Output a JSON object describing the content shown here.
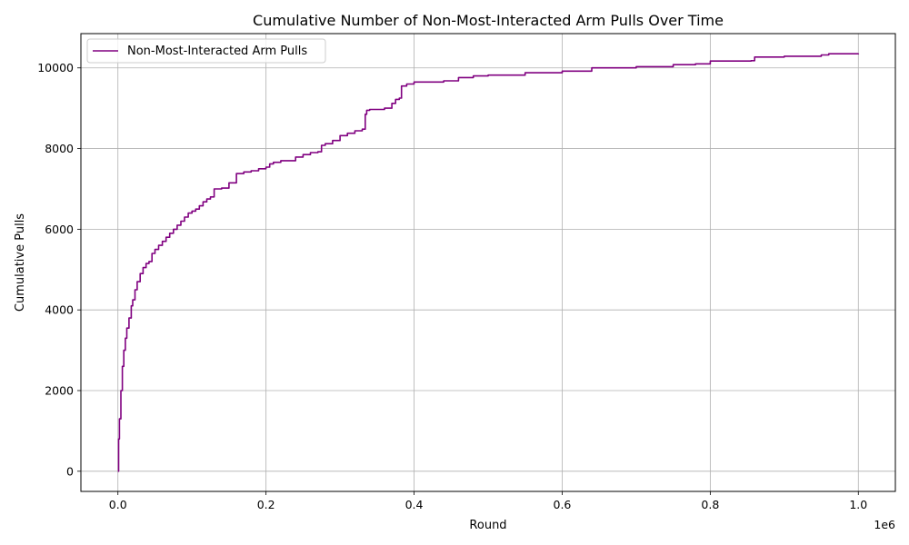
{
  "chart_data": {
    "type": "line",
    "title": "Cumulative Number of Non-Most-Interacted Arm Pulls Over Time",
    "xlabel": "Round",
    "ylabel": "Cumulative Pulls",
    "x_offset_label": "1e6",
    "xlim": [
      -0.05,
      1.05
    ],
    "ylim": [
      -500,
      10850
    ],
    "x_ticks": [
      0.0,
      0.2,
      0.4,
      0.6,
      0.8,
      1.0
    ],
    "x_tick_labels": [
      "0.0",
      "0.2",
      "0.4",
      "0.6",
      "0.8",
      "1.0"
    ],
    "y_ticks": [
      0,
      2000,
      4000,
      6000,
      8000,
      10000
    ],
    "y_tick_labels": [
      "0",
      "2000",
      "4000",
      "6000",
      "8000",
      "10000"
    ],
    "grid": true,
    "legend_position": "top-left",
    "series": [
      {
        "name": "Non-Most-Interacted Arm Pulls",
        "color": "#800080",
        "x": [
          0.0,
          0.001,
          0.002,
          0.004,
          0.006,
          0.008,
          0.01,
          0.012,
          0.015,
          0.018,
          0.02,
          0.023,
          0.026,
          0.03,
          0.034,
          0.038,
          0.042,
          0.046,
          0.05,
          0.055,
          0.06,
          0.065,
          0.07,
          0.075,
          0.08,
          0.085,
          0.09,
          0.095,
          0.1,
          0.105,
          0.11,
          0.115,
          0.12,
          0.125,
          0.13,
          0.14,
          0.15,
          0.16,
          0.17,
          0.18,
          0.19,
          0.2,
          0.205,
          0.21,
          0.22,
          0.24,
          0.25,
          0.26,
          0.27,
          0.275,
          0.28,
          0.29,
          0.3,
          0.31,
          0.32,
          0.33,
          0.334,
          0.336,
          0.34,
          0.36,
          0.37,
          0.375,
          0.38,
          0.383,
          0.39,
          0.4,
          0.44,
          0.46,
          0.48,
          0.5,
          0.55,
          0.6,
          0.64,
          0.7,
          0.75,
          0.78,
          0.8,
          0.855,
          0.86,
          0.9,
          0.95,
          0.96,
          1.0
        ],
        "y": [
          0,
          800,
          1300,
          2000,
          2600,
          3000,
          3300,
          3550,
          3800,
          4100,
          4250,
          4500,
          4700,
          4900,
          5050,
          5150,
          5200,
          5400,
          5500,
          5600,
          5700,
          5800,
          5900,
          6000,
          6100,
          6200,
          6300,
          6400,
          6450,
          6500,
          6580,
          6680,
          6750,
          6800,
          7000,
          7020,
          7150,
          7380,
          7420,
          7450,
          7500,
          7540,
          7620,
          7660,
          7700,
          7790,
          7850,
          7900,
          7920,
          8080,
          8120,
          8200,
          8320,
          8380,
          8440,
          8480,
          8850,
          8950,
          8970,
          9000,
          9120,
          9220,
          9250,
          9550,
          9600,
          9650,
          9680,
          9760,
          9800,
          9820,
          9880,
          9920,
          10000,
          10030,
          10080,
          10100,
          10170,
          10180,
          10270,
          10290,
          10320,
          10350,
          10360
        ]
      }
    ]
  }
}
